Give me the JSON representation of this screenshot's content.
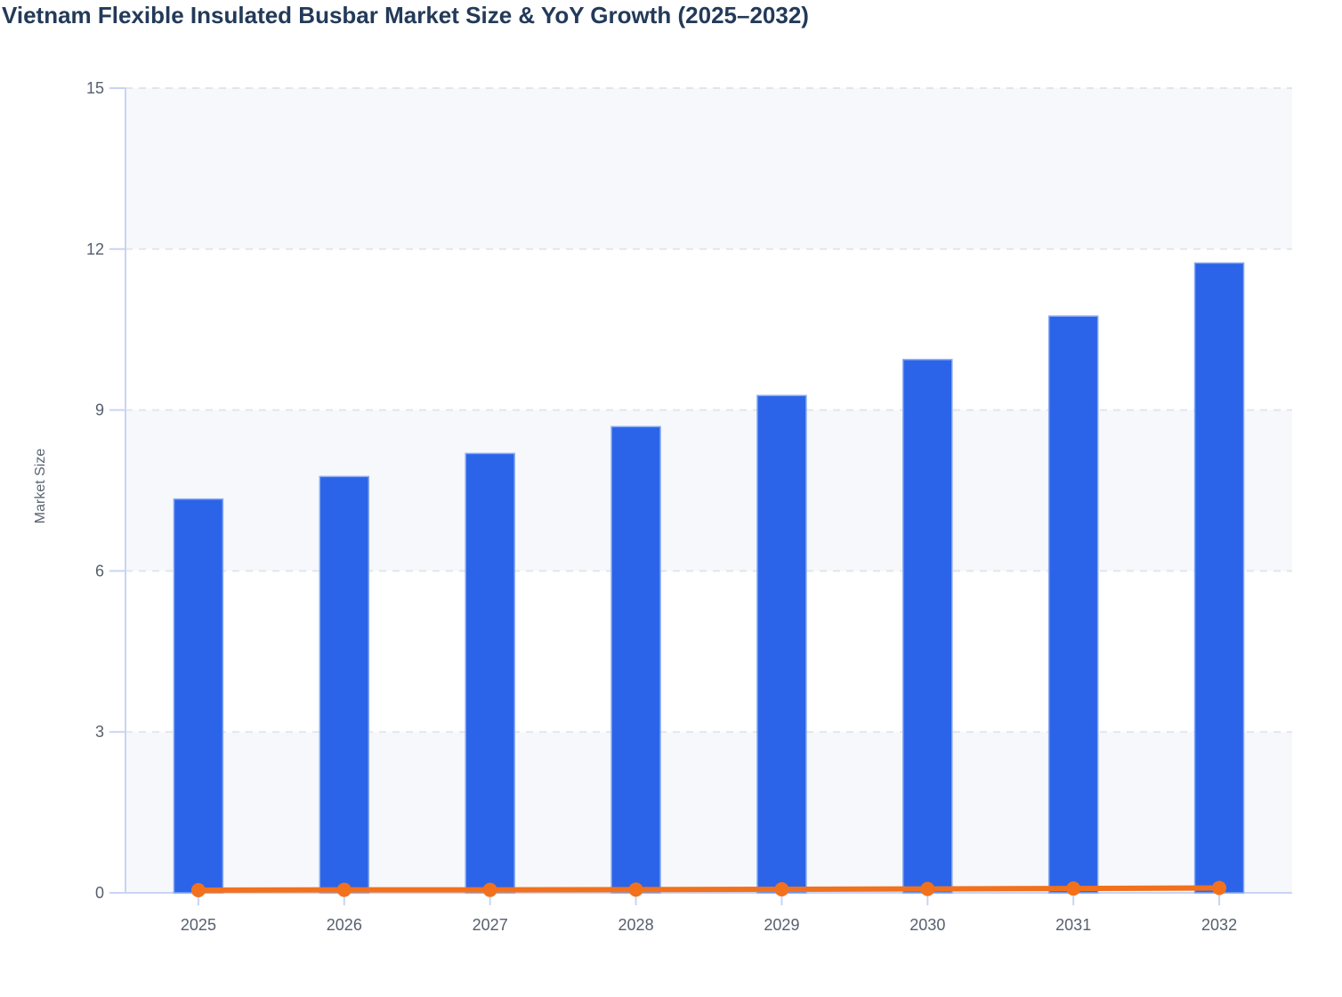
{
  "page": {
    "title": "Vietnam Flexible Insulated Busbar Market Size & YoY Growth (2025–2032)"
  },
  "chart_data": {
    "type": "bar",
    "title": "Vietnam Flexible Insulated Busbar Market Size & YoY Growth (2025–2032)",
    "xlabel": "",
    "ylabel": "Market Size",
    "categories": [
      "2025",
      "2026",
      "2027",
      "2028",
      "2029",
      "2030",
      "2031",
      "2032"
    ],
    "series": [
      {
        "name": "Market Size",
        "type": "bar",
        "color": "#2b64e8",
        "values": [
          7.34,
          7.76,
          8.19,
          8.69,
          9.27,
          9.94,
          10.75,
          11.74
        ]
      },
      {
        "name": "YoY Growth",
        "type": "line",
        "color": "#f2711d",
        "values": [
          0.05,
          0.057,
          0.055,
          0.061,
          0.066,
          0.073,
          0.081,
          0.092
        ]
      }
    ],
    "ylim": [
      0,
      15
    ],
    "yticks": [
      0,
      3,
      6,
      9,
      12,
      15
    ],
    "grid": "horizontal-dashed",
    "legend_position": "none",
    "alternating_bands": true
  },
  "colors": {
    "bar_fill": "#2b64e8",
    "bar_stroke": "#86a9f2",
    "line_color": "#f2711d",
    "axis_line": "#c9d4f4",
    "gridline": "#e2e5ec",
    "band_fill": "#f7f8fb",
    "tick_label": "#565f6e",
    "title_color": "#233a59"
  }
}
